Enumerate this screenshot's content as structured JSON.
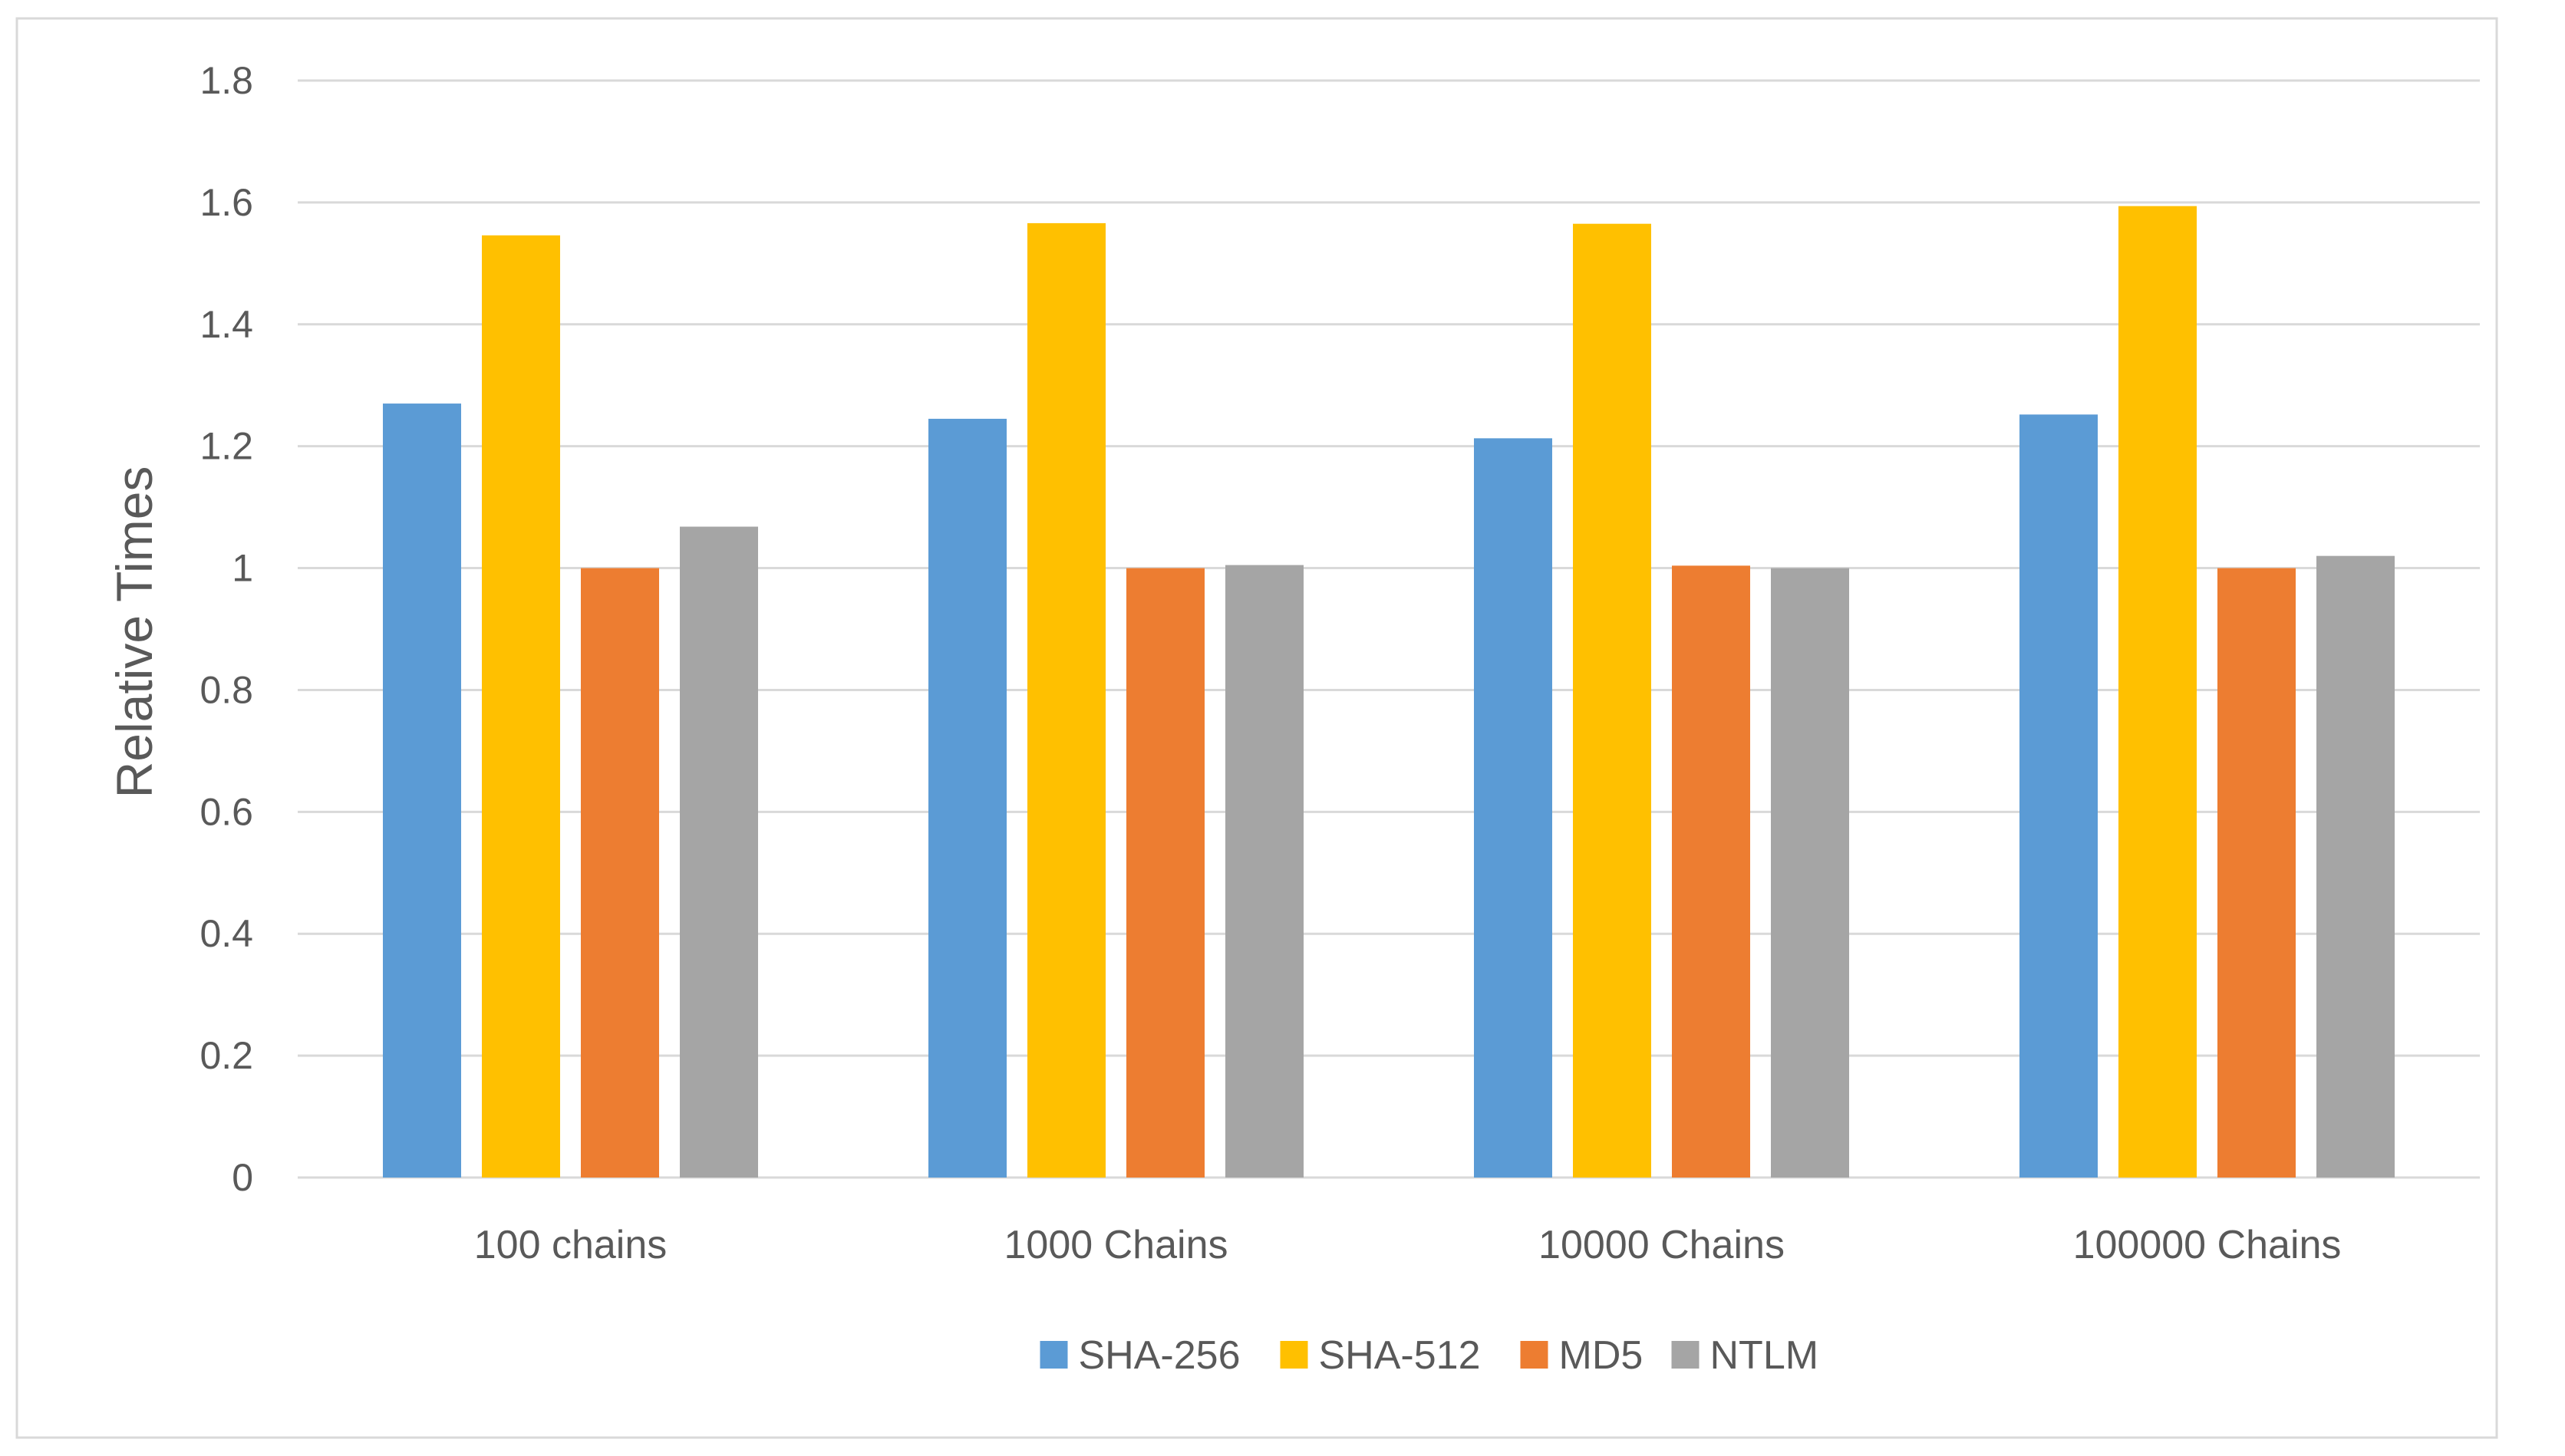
{
  "chart_data": {
    "type": "bar",
    "title": "",
    "xlabel": "",
    "ylabel": "Relative Times",
    "ylim": [
      0,
      1.8
    ],
    "yticks": [
      0,
      0.2,
      0.4,
      0.6,
      0.8,
      1,
      1.2,
      1.4,
      1.6,
      1.8
    ],
    "ytick_labels": [
      "0",
      "0.2",
      "0.4",
      "0.6",
      "0.8",
      "1",
      "1.2",
      "1.4",
      "1.6",
      "1.8"
    ],
    "grid": true,
    "legend_position": "bottom",
    "categories": [
      "100 chains",
      "1000 Chains",
      "10000 Chains",
      "100000 Chains"
    ],
    "series": [
      {
        "name": "SHA-256",
        "color": "#5B9BD5",
        "values": [
          1.27,
          1.245,
          1.213,
          1.252
        ]
      },
      {
        "name": "SHA-512",
        "color": "#FFC000",
        "values": [
          1.546,
          1.566,
          1.565,
          1.594
        ]
      },
      {
        "name": "MD5",
        "color": "#ED7D31",
        "values": [
          1.0,
          1.0,
          1.004,
          1.0
        ]
      },
      {
        "name": "NTLM",
        "color": "#A5A5A5",
        "values": [
          1.068,
          1.005,
          1.0,
          1.02
        ]
      }
    ]
  },
  "colors": {
    "gridline": "#D9D9D9",
    "axis_text": "#595959",
    "frame_border": "#D9D9D9"
  }
}
